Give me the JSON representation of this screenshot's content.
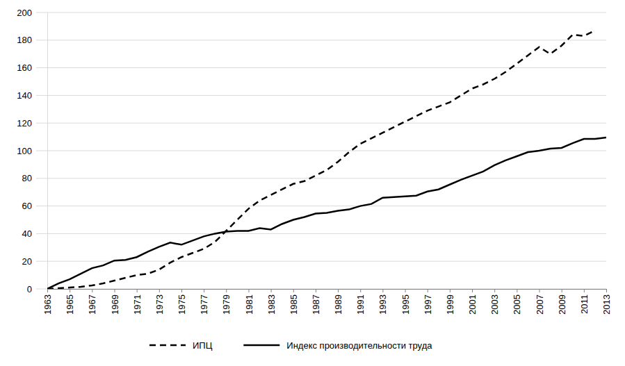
{
  "chart_data": {
    "type": "line",
    "x": [
      1963,
      1964,
      1965,
      1966,
      1967,
      1968,
      1969,
      1970,
      1971,
      1972,
      1973,
      1974,
      1975,
      1976,
      1977,
      1978,
      1979,
      1980,
      1981,
      1982,
      1983,
      1984,
      1985,
      1986,
      1987,
      1988,
      1989,
      1990,
      1991,
      1992,
      1993,
      1994,
      1995,
      1996,
      1997,
      1998,
      1999,
      2000,
      2001,
      2002,
      2003,
      2004,
      2005,
      2006,
      2007,
      2008,
      2009,
      2010,
      2011,
      2012,
      2013
    ],
    "series": [
      {
        "name": "ИПЦ",
        "color": "#000000",
        "line_style": "dashed",
        "values": [
          0,
          0.5,
          1,
          1.5,
          2.5,
          4,
          6,
          8,
          10,
          11,
          14,
          19,
          23,
          26,
          29,
          34,
          42,
          50,
          58,
          64,
          68,
          72,
          76,
          78,
          82,
          86,
          92,
          99,
          105,
          109,
          113,
          117,
          121,
          125,
          129,
          132,
          135,
          140,
          145,
          148,
          152,
          157,
          163,
          169,
          175,
          170,
          176,
          184,
          183,
          187,
          null
        ]
      },
      {
        "name": "Индекс производительности труда",
        "color": "#000000",
        "line_style": "solid",
        "values": [
          0,
          4,
          7,
          11,
          15,
          17,
          20.5,
          21,
          23,
          27,
          30.5,
          33.5,
          32,
          35,
          38,
          40,
          41.5,
          42,
          42,
          44,
          43,
          47,
          50,
          52,
          54.5,
          55,
          56.5,
          57.5,
          60,
          61.5,
          66,
          66.5,
          67,
          67.5,
          70.5,
          72,
          75.5,
          79,
          82,
          85,
          89.5,
          93,
          96,
          99,
          100,
          101.5,
          102,
          105.5,
          108.5,
          108.5,
          109.5
        ]
      }
    ],
    "xlim": [
      1963,
      2013
    ],
    "xticks": [
      1963,
      1965,
      1967,
      1969,
      1971,
      1973,
      1975,
      1977,
      1979,
      1981,
      1983,
      1985,
      1987,
      1989,
      1991,
      1993,
      1995,
      1997,
      1999,
      2001,
      2003,
      2005,
      2007,
      2009,
      2011,
      2013
    ],
    "ylim": [
      0,
      200
    ],
    "yticks": [
      0,
      20,
      40,
      60,
      80,
      100,
      120,
      140,
      160,
      180,
      200
    ],
    "grid": true,
    "legend": "bottom"
  }
}
